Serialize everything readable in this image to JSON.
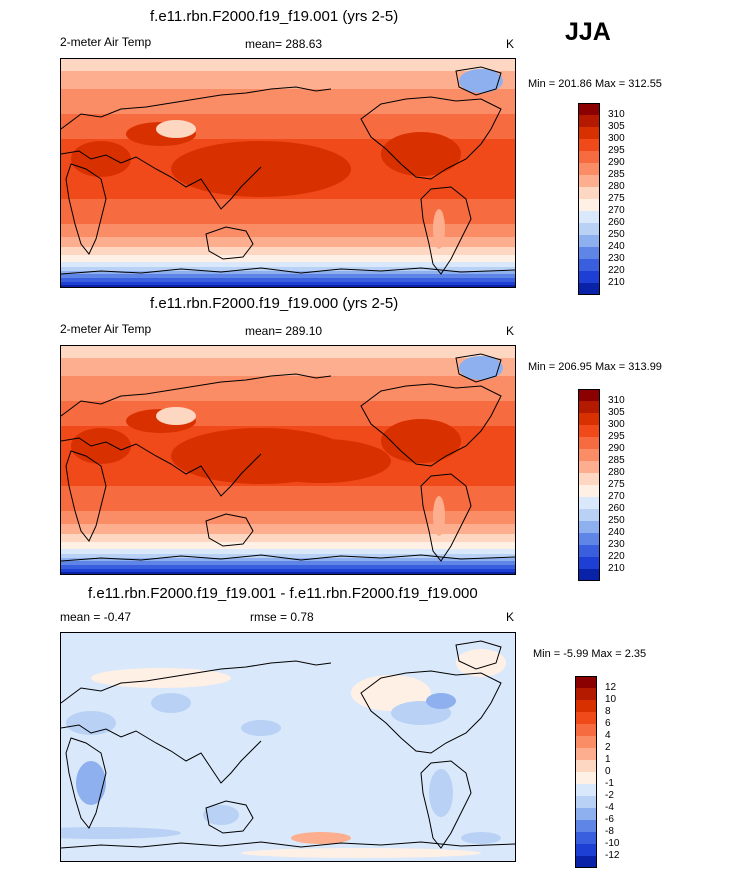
{
  "season": "JJA",
  "panels": [
    {
      "title": "f.e11.rbn.F2000.f19_f19.001 (yrs 2-5)",
      "left_label": "2-meter Air Temp",
      "center_label": "mean= 288.63",
      "units": "K",
      "minmax": "Min = 201.86 Max = 312.55",
      "colorbar": {
        "levels": [
          "310",
          "305",
          "300",
          "295",
          "290",
          "285",
          "280",
          "275",
          "270",
          "260",
          "250",
          "240",
          "230",
          "220",
          "210"
        ],
        "colors": [
          "#8b0000",
          "#b31a00",
          "#d93000",
          "#f04a1a",
          "#f76b40",
          "#fa8c66",
          "#fcae8e",
          "#fdd7c2",
          "#fff0e6",
          "#d9e8fb",
          "#b8d1f5",
          "#8fb0ee",
          "#5f86e6",
          "#3a5fde",
          "#1e3fd4",
          "#0a22a8"
        ],
        "shape": "warm"
      }
    },
    {
      "title": "f.e11.rbn.F2000.f19_f19.000 (yrs 2-5)",
      "left_label": "2-meter Air Temp",
      "center_label": "mean= 289.10",
      "units": "K",
      "minmax": "Min = 206.95 Max = 313.99",
      "colorbar": {
        "levels": [
          "310",
          "305",
          "300",
          "295",
          "290",
          "285",
          "280",
          "275",
          "270",
          "260",
          "250",
          "240",
          "230",
          "220",
          "210"
        ],
        "colors": [
          "#8b0000",
          "#b31a00",
          "#d93000",
          "#f04a1a",
          "#f76b40",
          "#fa8c66",
          "#fcae8e",
          "#fdd7c2",
          "#fff0e6",
          "#d9e8fb",
          "#b8d1f5",
          "#8fb0ee",
          "#5f86e6",
          "#3a5fde",
          "#1e3fd4",
          "#0a22a8"
        ],
        "shape": "warm"
      }
    },
    {
      "title": "f.e11.rbn.F2000.f19_f19.001 - f.e11.rbn.F2000.f19_f19.000",
      "left_label": "mean =  -0.47",
      "center_label": "rmse =  0.78",
      "units": "K",
      "minmax": "Min =  -5.99 Max =   2.35",
      "colorbar": {
        "levels": [
          "12",
          "10",
          "8",
          "6",
          "4",
          "2",
          "1",
          "0",
          "-1",
          "-2",
          "-4",
          "-6",
          "-8",
          "-10",
          "-12"
        ],
        "colors": [
          "#8b0000",
          "#b31a00",
          "#d93000",
          "#f04a1a",
          "#f76b40",
          "#fa8c66",
          "#fcae8e",
          "#fdd7c2",
          "#fff0e6",
          "#d9e8fb",
          "#b8d1f5",
          "#8fb0ee",
          "#5f86e6",
          "#3a5fde",
          "#1e3fd4",
          "#0a22a8"
        ],
        "shape": "diff"
      }
    }
  ]
}
